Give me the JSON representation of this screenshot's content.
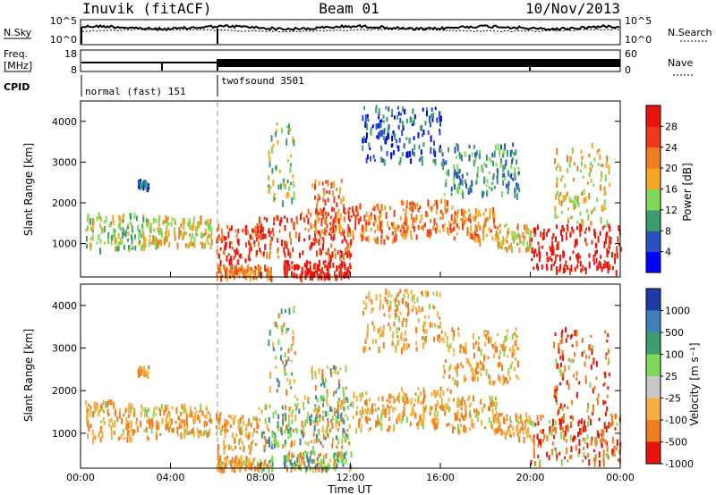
{
  "header": {
    "station": "Inuvik (fitACF)",
    "beam": "Beam 01",
    "date": "10/Nov/2013"
  },
  "top_panels": {
    "nsky_label": "N.Sky",
    "nsky_ticks": [
      "10^5",
      "10^0"
    ],
    "nsearch_label": "N.Search",
    "nsearch_ticks": [
      "10^5",
      "10^0"
    ],
    "freq_label": "Freq.",
    "freq_unit": "[MHz]",
    "freq_ticks": [
      "18",
      "8"
    ],
    "nave_label": "Nave",
    "nave_ticks": [
      "60",
      "0"
    ],
    "cpid_label": "CPID",
    "cpid_modes": [
      "normal (fast) 151",
      "twofsound 3501"
    ]
  },
  "chart_data": [
    {
      "type": "heatmap",
      "title": "",
      "xlabel": "",
      "ylabel": "Slant Range [km]",
      "xlim": [
        "00:00",
        "24:00"
      ],
      "ylim": [
        180,
        4500
      ],
      "y_ticks": [
        "1000",
        "2000",
        "3000",
        "4000"
      ],
      "colorbar_label": "Power [dB]",
      "colorbar_ticks": [
        "4",
        "8",
        "12",
        "16",
        "20",
        "24",
        "28"
      ],
      "colors": [
        "#0000ff",
        "#2a52be",
        "#3c9d6e",
        "#7ed957",
        "#f5a623",
        "#f07d1e",
        "#ee3a1c",
        "#e8140c"
      ]
    },
    {
      "type": "heatmap",
      "title": "",
      "xlabel": "Time UT",
      "ylabel": "Slant Range [km]",
      "xlim": [
        "00:00",
        "24:00"
      ],
      "ylim": [
        180,
        4500
      ],
      "y_ticks": [
        "1000",
        "2000",
        "3000",
        "4000"
      ],
      "x_ticks": [
        "00:00",
        "04:00",
        "08:00",
        "12:00",
        "16:00",
        "20:00",
        "00:00"
      ],
      "colorbar_label": "Velocity [m s⁻¹]",
      "colorbar_ticks": [
        "1000",
        "500",
        "100",
        "25",
        "-25",
        "-100",
        "-500",
        "-1000"
      ],
      "colors": [
        "#1e3ca8",
        "#3d7fb8",
        "#3c9d6e",
        "#7ed957",
        "#c8c8c8",
        "#f5b041",
        "#f07d1e",
        "#e8140c"
      ]
    }
  ]
}
